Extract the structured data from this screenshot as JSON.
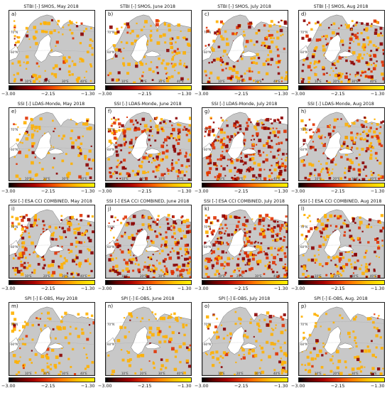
{
  "colorbar": {
    "ticks": [
      "−3.00",
      "−2.15",
      "−1.30"
    ]
  },
  "panels": [
    {
      "label": "a)",
      "title": "STBI [-] SMOS, May 2018"
    },
    {
      "label": "b)",
      "title": "STBI [-] SMOS, June 2018"
    },
    {
      "label": "c)",
      "title": "STBI [-] SMOS, July 2018"
    },
    {
      "label": "d)",
      "title": "STBI [-] SMOS, Aug 2018"
    },
    {
      "label": "e)",
      "title": "SSI [-] LDAS-Monde, May 2018"
    },
    {
      "label": "f)",
      "title": "SSI [-] LDAS-Monde, June 2018"
    },
    {
      "label": "g)",
      "title": "SSI [-] LDAS-Monde, July 2018"
    },
    {
      "label": "h)",
      "title": "SSI [-] LDAS-Monde, Aug 2018"
    },
    {
      "label": "i)",
      "title": "SSI [-] ESA CCI COMBINED, May 2018"
    },
    {
      "label": "j)",
      "title": "SSI [-] ESA CCI COMBINED, June 2018"
    },
    {
      "label": "k)",
      "title": "SSI [-] ESA CCI COMBINED, July 2018"
    },
    {
      "label": "l)",
      "title": "SSI [-] ESA CCI COMBINED, Aug 2018"
    },
    {
      "label": "m)",
      "title": "SPI [-] E-OBS, May 2018"
    },
    {
      "label": "n)",
      "title": "SPI [-] E-OBS, June 2018"
    },
    {
      "label": "o)",
      "title": "SPI [-] E-OBS, July 2018"
    },
    {
      "label": "p)",
      "title": "SPI [-] E-OBS, Aug. 2018"
    }
  ],
  "map_axes": {
    "lat_labels": [
      "70°N",
      "60°N"
    ],
    "lon_labels": [
      "10°E",
      "20°E",
      "30°E",
      "40°E"
    ]
  },
  "colors": {
    "land": "#c8c8c8",
    "sea": "#ffffff",
    "severe": "#8b0000",
    "moderate": "#e03000",
    "mild": "#ffb000"
  }
}
